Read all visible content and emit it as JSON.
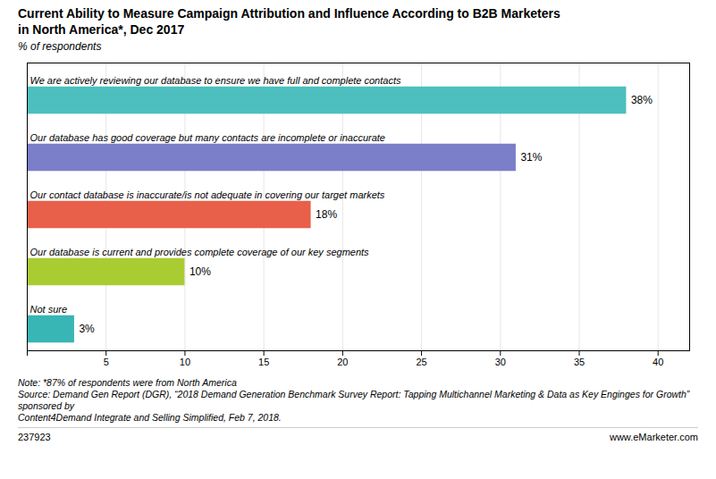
{
  "chart_data": {
    "type": "bar",
    "orientation": "horizontal",
    "title": "Current Ability to Measure Campaign Attribution and Influence According to B2B Marketers\nin North America*, Dec 2017",
    "subtitle": "% of respondents",
    "categories": [
      "We are actively reviewing our database to ensure we have full and complete contacts",
      "Our database has good coverage but many contacts are incomplete or inaccurate",
      "Our contact database is inaccurate/is not adequate in covering our target markets",
      "Our database is current and provides complete coverage of our key segments",
      "Not sure"
    ],
    "values": [
      38,
      31,
      18,
      10,
      3
    ],
    "value_labels": [
      "38%",
      "31%",
      "18%",
      "10%",
      "3%"
    ],
    "data_labels": true,
    "colors": [
      "#4DBFBF",
      "#7B7EC8",
      "#E8604A",
      "#AACC33",
      "#38B5B5"
    ],
    "xlim": [
      0,
      42
    ],
    "xticks": [
      {
        "value": 0,
        "label": null
      },
      5,
      10,
      15,
      20,
      25,
      30,
      35,
      40
    ],
    "grid": true,
    "notes": [
      "Note: *87% of respondents were from North America",
      "Source: Demand Gen Report (DGR), “2018 Demand Generation Benchmark Survey Report: Tapping Multichannel Marketing & Data as Key Enginges for Growth” sponsored by",
      "Content4Demand Integrate and Selling Simplified, Feb 7, 2018."
    ],
    "footer": [
      "237923",
      "www.eMarketer.com"
    ]
  }
}
